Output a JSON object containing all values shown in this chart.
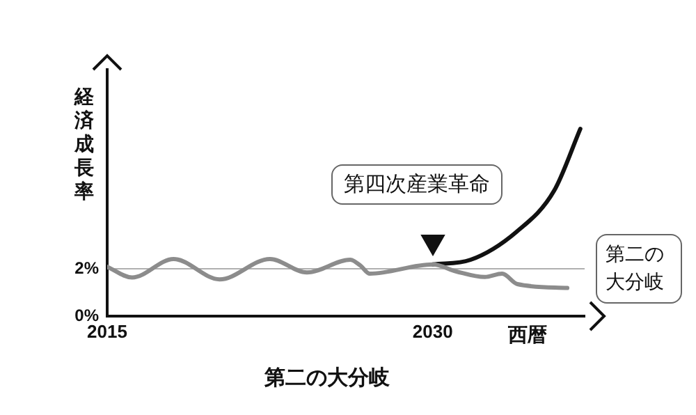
{
  "chart_data": {
    "type": "line",
    "title": "第二の大分岐",
    "xlabel": "西暦",
    "ylabel": "経済成長率",
    "xlim": [
      2015,
      2037
    ],
    "xticks": [
      2015,
      2030
    ],
    "ylim": [
      0,
      10.4
    ],
    "yticks": [
      {
        "value": 0,
        "label": "0%"
      },
      {
        "value": 2,
        "label": "2%"
      }
    ],
    "grid": false,
    "legend": false,
    "marker": "none",
    "line_style": "solid",
    "ref_lines": [
      {
        "axis": "y",
        "value": 2,
        "color": "#b0b0b0"
      }
    ],
    "annotations": [
      "第四次産業革命",
      "第二の大分岐"
    ],
    "series": [
      {
        "color": "#8c8c8c",
        "x": [
          2015,
          2016.15,
          2018.06,
          2020.18,
          2022.5,
          2024.2,
          2026.2,
          2026.66,
          2027.1,
          2030,
          2031.1,
          2032.4,
          2033.2,
          2033.9,
          2036.2
        ],
        "values": [
          2.08,
          1.63,
          2.41,
          1.55,
          2.41,
          1.84,
          2.38,
          2.14,
          1.79,
          2.18,
          1.88,
          1.65,
          1.79,
          1.35,
          1.19
        ]
      },
      {
        "color": "#111111",
        "x": [
          2030,
          2031.75,
          2033.85,
          2035.6,
          2036.8
        ],
        "values": [
          2.18,
          2.38,
          3.55,
          5.3,
          7.9
        ]
      }
    ]
  }
}
